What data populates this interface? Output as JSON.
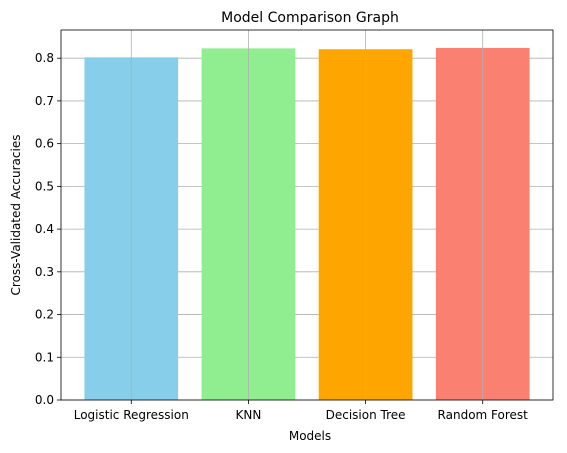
{
  "chart_data": {
    "type": "bar",
    "title": "Model Comparison Graph",
    "xlabel": "Models",
    "ylabel": "Cross-Validated Accuracies",
    "categories": [
      "Logistic Regression",
      "KNN",
      "Decision Tree",
      "Random Forest"
    ],
    "values": [
      0.802,
      0.823,
      0.821,
      0.824
    ],
    "colors": [
      "#87ceeb",
      "#90ee90",
      "#ffa500",
      "#fa8072"
    ],
    "ylim": [
      0,
      0.866
    ],
    "yticks": [
      "0.0",
      "0.1",
      "0.2",
      "0.3",
      "0.4",
      "0.5",
      "0.6",
      "0.7",
      "0.8"
    ],
    "grid": true
  }
}
